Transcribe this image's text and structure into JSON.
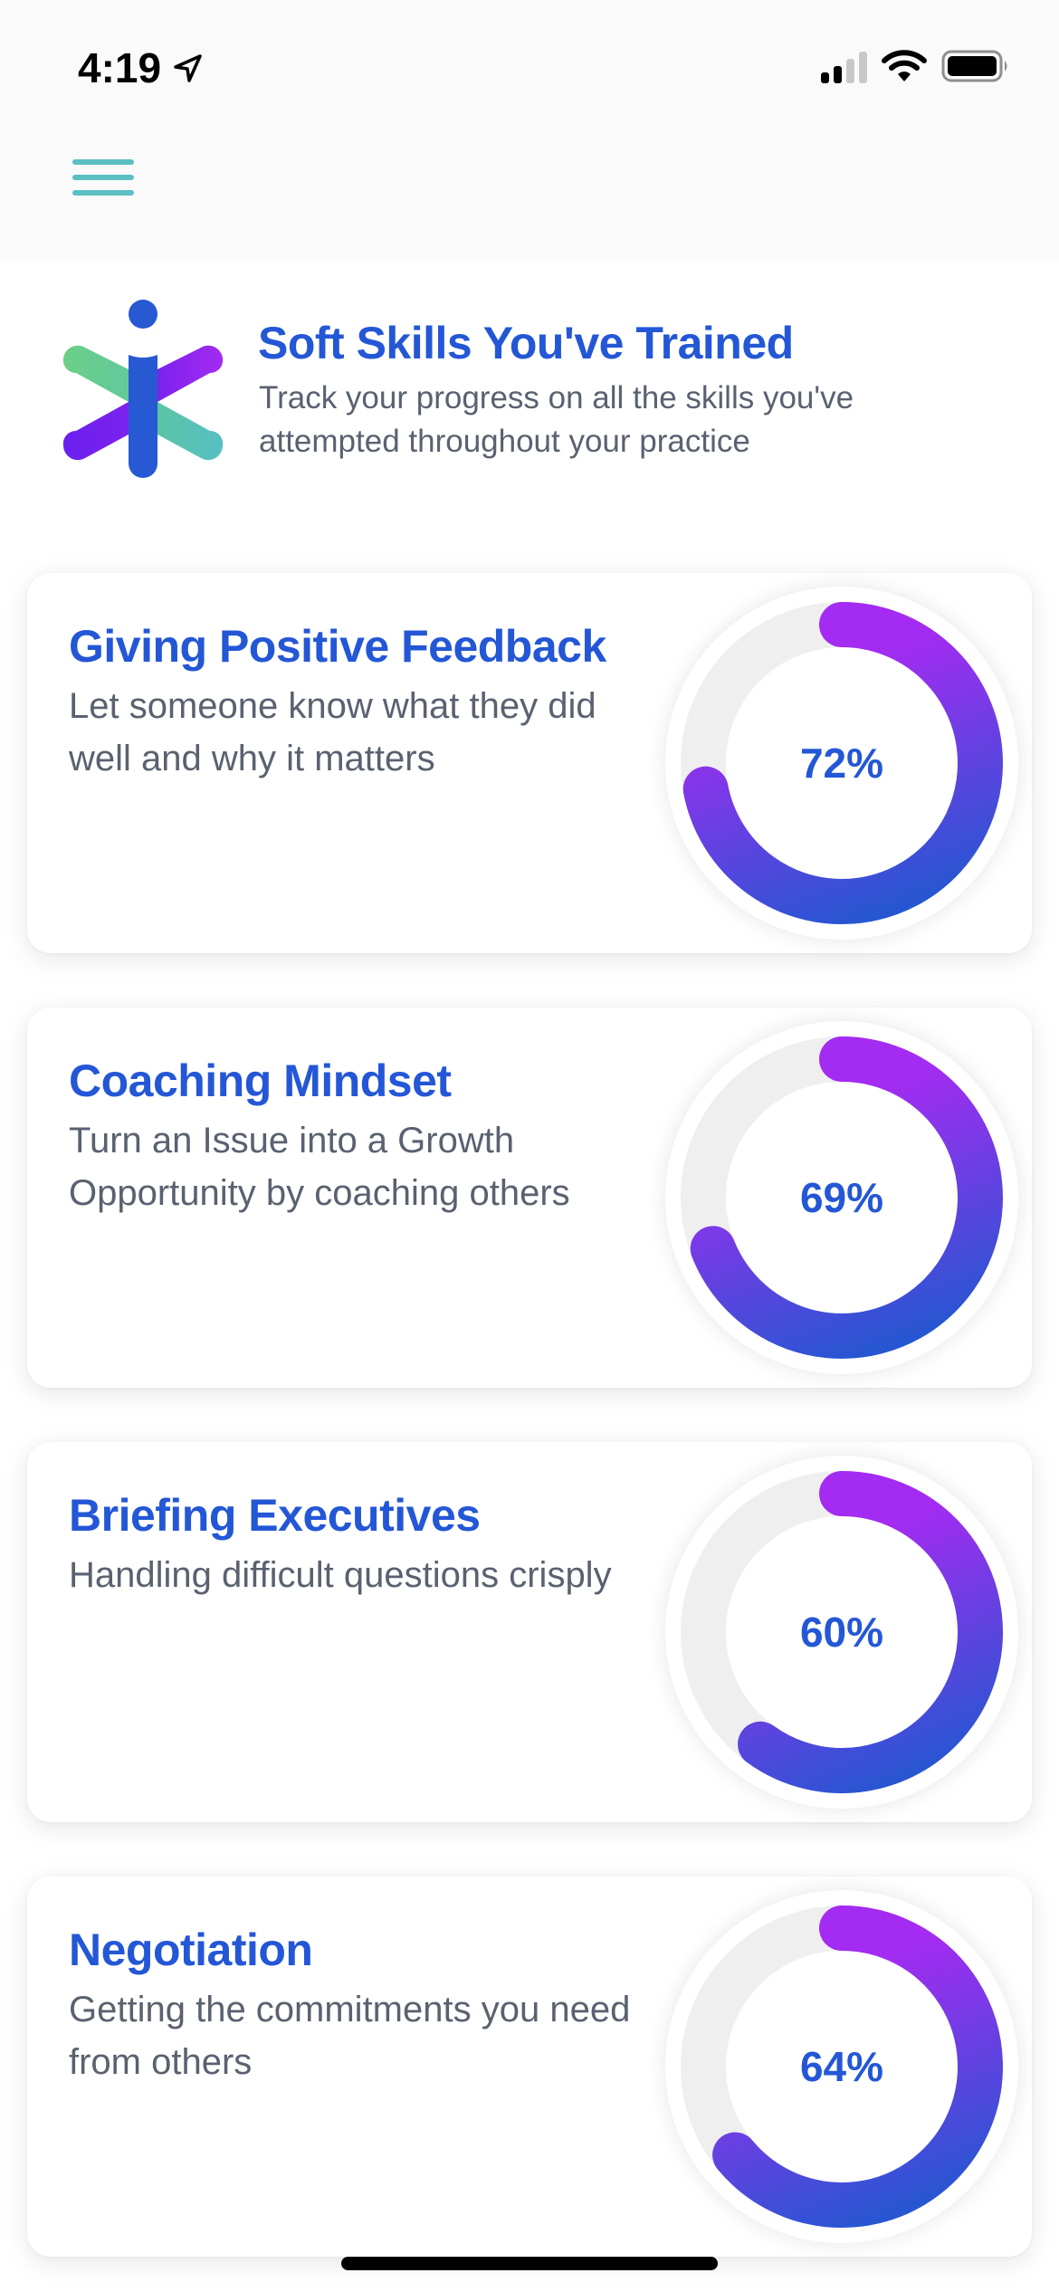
{
  "status_bar": {
    "time": "4:19",
    "signal_bars_filled": 2,
    "signal_bars_total": 4,
    "icons": [
      "location-arrow-icon",
      "signal-icon",
      "wifi-icon",
      "battery-icon"
    ]
  },
  "header": {
    "menu_icon": "hamburger-menu-icon"
  },
  "intro": {
    "logo": "app-logo",
    "title": "Soft Skills You've Trained",
    "subtitle": "Track your progress on all the skills you've attempted throughout your practice"
  },
  "colors": {
    "accent_blue": "#2457d6",
    "text_gray": "#5a6170",
    "ring_gradient_start": "#a42bf1",
    "ring_gradient_end": "#2756d2",
    "ring_track": "#efefef",
    "menu_teal": "#5bbfc4"
  },
  "skills": [
    {
      "title": "Giving Positive Feedback",
      "description": "Let someone know what they did well and why it matters",
      "percent": 72,
      "percent_label": "72%"
    },
    {
      "title": "Coaching Mindset",
      "description": "Turn an Issue into a Growth Opportunity by coaching others",
      "percent": 69,
      "percent_label": "69%"
    },
    {
      "title": "Briefing Executives",
      "description": "Handling difficult questions crisply",
      "percent": 60,
      "percent_label": "60%"
    },
    {
      "title": "Negotiation",
      "description": "Getting the commitments you need from others",
      "percent": 64,
      "percent_label": "64%"
    }
  ],
  "chart_data": {
    "type": "pie",
    "title": "Soft Skills You've Trained",
    "categories": [
      "Giving Positive Feedback",
      "Coaching Mindset",
      "Briefing Executives",
      "Negotiation"
    ],
    "values": [
      72,
      69,
      60,
      64
    ],
    "unit": "%",
    "style": "progress-ring"
  }
}
